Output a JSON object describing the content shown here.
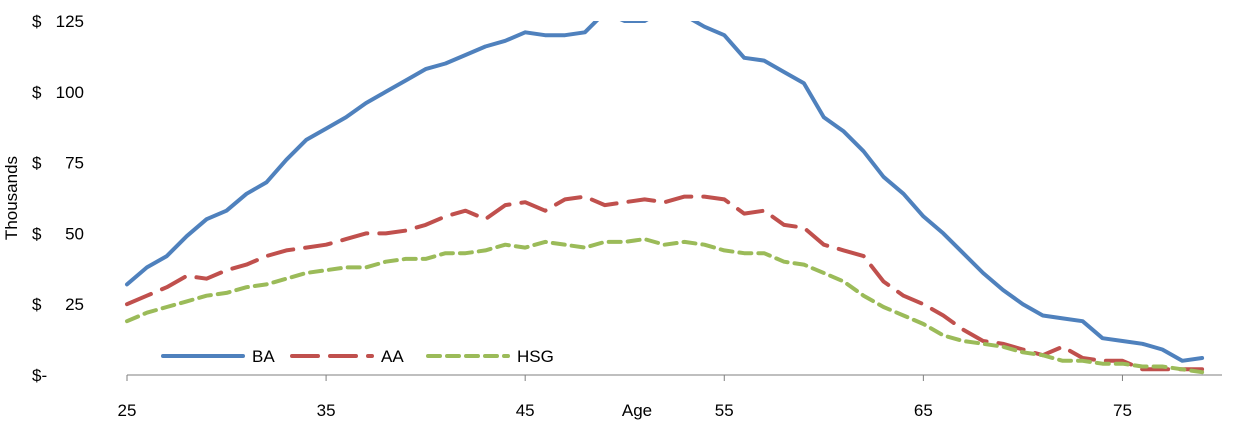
{
  "chart_data": {
    "type": "line",
    "title": "",
    "xlabel": "Age",
    "ylabel": "Thousands",
    "xlim": [
      25,
      80
    ],
    "ylim": [
      0,
      125
    ],
    "x_ticks": [
      25,
      35,
      45,
      55,
      65,
      75
    ],
    "x_tick_labels": [
      "25",
      "35",
      "45",
      "55",
      "65",
      "75"
    ],
    "y_ticks": [
      0,
      25,
      50,
      75,
      100,
      125
    ],
    "y_tick_labels": [
      "$-",
      "$25",
      "$50",
      "$75",
      "$100",
      "$125"
    ],
    "grid": false,
    "legend_position": "bottom-left",
    "x": [
      25,
      26,
      27,
      28,
      29,
      30,
      31,
      32,
      33,
      34,
      35,
      36,
      37,
      38,
      39,
      40,
      41,
      42,
      43,
      44,
      45,
      46,
      47,
      48,
      49,
      50,
      51,
      52,
      53,
      54,
      55,
      56,
      57,
      58,
      59,
      60,
      61,
      62,
      63,
      64,
      65,
      66,
      67,
      68,
      69,
      70,
      71,
      72,
      73,
      74,
      75,
      76,
      77,
      78,
      79
    ],
    "series": [
      {
        "name": "BA",
        "color": "#4F81BD",
        "dash": "solid",
        "values": [
          32,
          38,
          42,
          49,
          55,
          58,
          64,
          68,
          76,
          83,
          87,
          91,
          96,
          100,
          104,
          108,
          110,
          113,
          116,
          118,
          121,
          120,
          120,
          121,
          128,
          125,
          125,
          129,
          127,
          123,
          120,
          112,
          111,
          107,
          103,
          91,
          86,
          79,
          70,
          64,
          56,
          50,
          43,
          36,
          30,
          25,
          21,
          20,
          19,
          13,
          12,
          11,
          9,
          5,
          6
        ]
      },
      {
        "name": "AA",
        "color": "#C0504D",
        "dash": "dashed",
        "values": [
          25,
          28,
          31,
          35,
          34,
          37,
          39,
          42,
          44,
          45,
          46,
          48,
          50,
          50,
          51,
          53,
          56,
          58,
          55,
          60,
          61,
          58,
          62,
          63,
          60,
          61,
          62,
          61,
          63,
          63,
          62,
          57,
          58,
          53,
          52,
          46,
          44,
          42,
          33,
          28,
          25,
          21,
          16,
          12,
          11,
          9,
          7,
          10,
          6,
          5,
          5,
          2,
          2,
          2,
          2
        ]
      },
      {
        "name": "HSG",
        "color": "#9BBB59",
        "dash": "dashed-fine",
        "values": [
          19,
          22,
          24,
          26,
          28,
          29,
          31,
          32,
          34,
          36,
          37,
          38,
          38,
          40,
          41,
          41,
          43,
          43,
          44,
          46,
          45,
          47,
          46,
          45,
          47,
          47,
          48,
          46,
          47,
          46,
          44,
          43,
          43,
          40,
          39,
          36,
          33,
          28,
          24,
          21,
          18,
          14,
          12,
          11,
          10,
          8,
          7,
          5,
          5,
          4,
          4,
          3,
          3,
          2,
          1
        ]
      }
    ]
  }
}
